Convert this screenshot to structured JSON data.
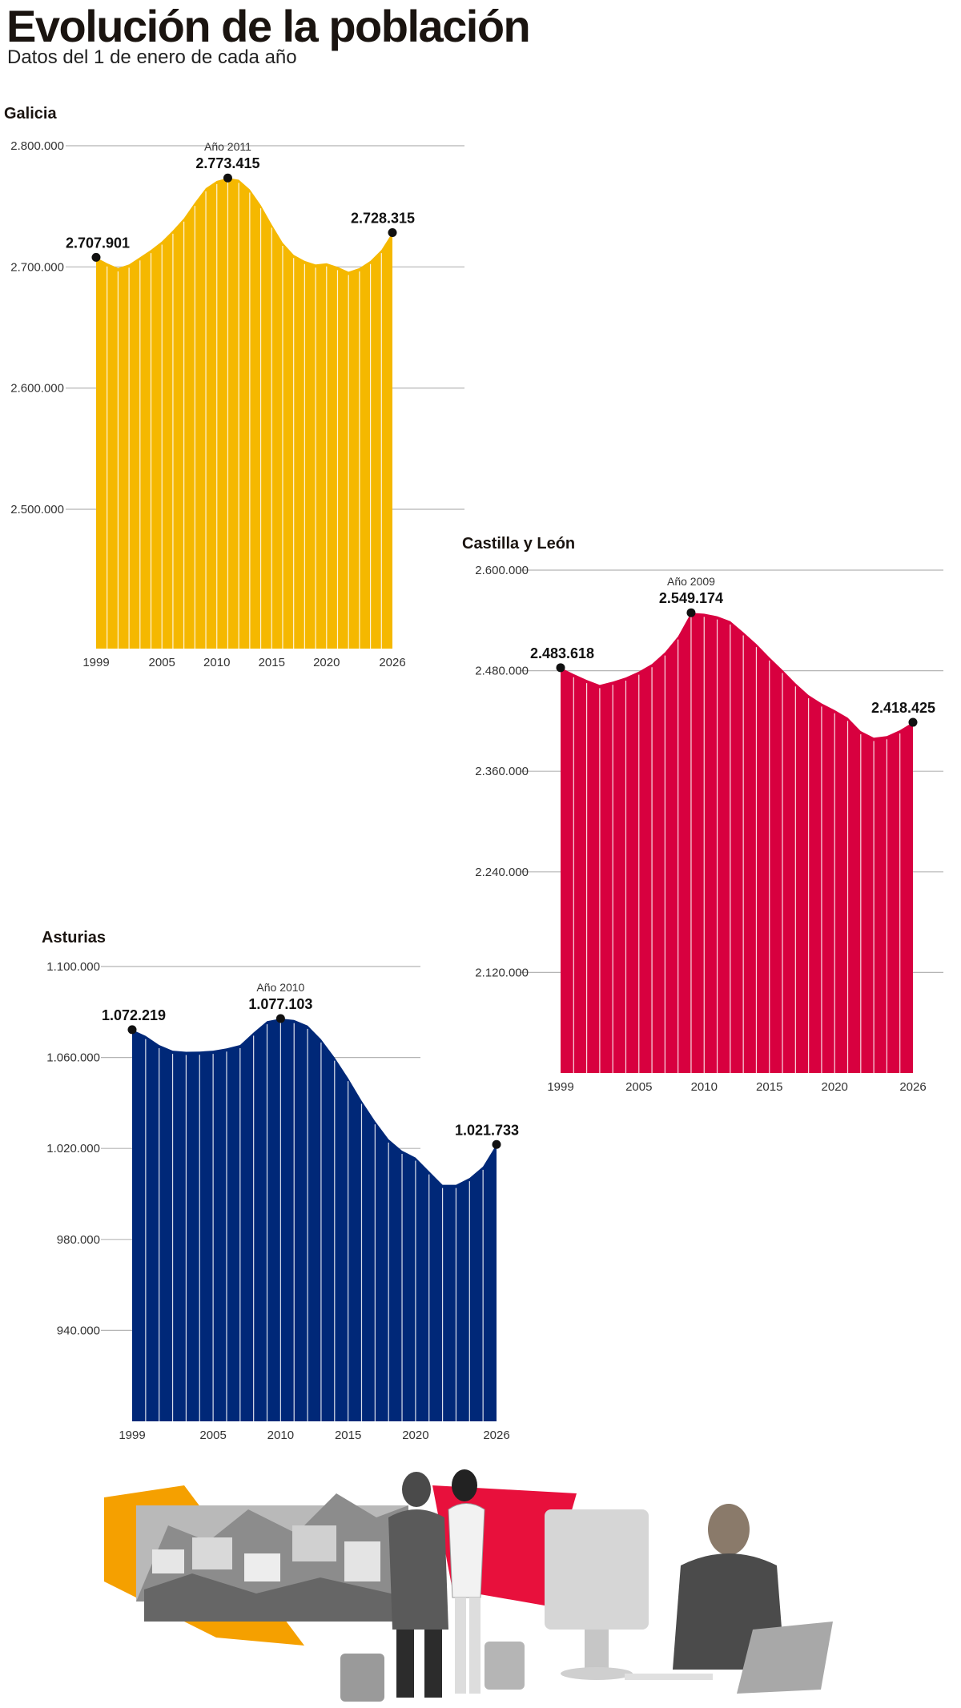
{
  "header": {
    "title": "Evolución de la población",
    "subtitle": "Datos del 1 de enero de cada año"
  },
  "chart_data": [
    {
      "type": "area",
      "title": "Galicia",
      "color": "#f5b800",
      "x": [
        1999,
        2000,
        2001,
        2002,
        2003,
        2004,
        2005,
        2006,
        2007,
        2008,
        2009,
        2010,
        2011,
        2012,
        2013,
        2014,
        2015,
        2016,
        2017,
        2018,
        2019,
        2020,
        2021,
        2022,
        2023,
        2024,
        2025,
        2026
      ],
      "values": [
        2707901,
        2703000,
        2699000,
        2702000,
        2708000,
        2714000,
        2721000,
        2730000,
        2740000,
        2753000,
        2765000,
        2771000,
        2773415,
        2772000,
        2764000,
        2751000,
        2735000,
        2720000,
        2710000,
        2705000,
        2702000,
        2703000,
        2700000,
        2696000,
        2699000,
        2705000,
        2714000,
        2728315
      ],
      "yticks": [
        2500000,
        2600000,
        2700000,
        2800000
      ],
      "ytick_labels": [
        "2.500.000",
        "2.600.000",
        "2.700.000",
        "2.800.000"
      ],
      "ylim": [
        2385000,
        2800000
      ],
      "xticks": [
        1999,
        2005,
        2010,
        2015,
        2020,
        2026
      ],
      "annotations": [
        {
          "year": 1999,
          "value": "2.707.901"
        },
        {
          "year": 2011,
          "note": "Año 2011",
          "value": "2.773.415"
        },
        {
          "year": 2026,
          "value": "2.728.315"
        }
      ]
    },
    {
      "type": "area",
      "title": "Castilla y León",
      "color": "#d8003f",
      "x": [
        1999,
        2000,
        2001,
        2002,
        2003,
        2004,
        2005,
        2006,
        2007,
        2008,
        2009,
        2010,
        2011,
        2012,
        2013,
        2014,
        2015,
        2016,
        2017,
        2018,
        2019,
        2020,
        2021,
        2022,
        2023,
        2024,
        2025,
        2026
      ],
      "values": [
        2483618,
        2476000,
        2469000,
        2463000,
        2467000,
        2472000,
        2479000,
        2488000,
        2502000,
        2521000,
        2549174,
        2548000,
        2545000,
        2539000,
        2526000,
        2512000,
        2496000,
        2481000,
        2465000,
        2451000,
        2441000,
        2433000,
        2424000,
        2408000,
        2400000,
        2402000,
        2409000,
        2418425
      ],
      "yticks": [
        2120000,
        2240000,
        2360000,
        2480000,
        2600000
      ],
      "ytick_labels": [
        "2.120.000",
        "2.240.000",
        "2.360.000",
        "2.480.000",
        "2.600.000"
      ],
      "ylim": [
        2000000,
        2600000
      ],
      "xticks": [
        1999,
        2005,
        2010,
        2015,
        2020,
        2026
      ],
      "annotations": [
        {
          "year": 1999,
          "value": "2.483.618"
        },
        {
          "year": 2009,
          "note": "Año 2009",
          "value": "2.549.174"
        },
        {
          "year": 2026,
          "value": "2.418.425"
        }
      ]
    },
    {
      "type": "area",
      "title": "Asturias",
      "color": "#002878",
      "x": [
        1999,
        2000,
        2001,
        2002,
        2003,
        2004,
        2005,
        2006,
        2007,
        2008,
        2009,
        2010,
        2011,
        2012,
        2013,
        2014,
        2015,
        2016,
        2017,
        2018,
        2019,
        2020,
        2021,
        2022,
        2023,
        2024,
        2025,
        2026
      ],
      "values": [
        1072219,
        1069500,
        1065500,
        1063000,
        1062500,
        1062600,
        1063000,
        1064000,
        1065500,
        1071000,
        1076000,
        1077103,
        1076500,
        1074000,
        1068000,
        1060000,
        1051000,
        1041000,
        1032000,
        1024000,
        1019000,
        1016000,
        1010000,
        1004000,
        1004000,
        1007000,
        1012000,
        1021733
      ],
      "yticks": [
        940000,
        980000,
        1020000,
        1060000,
        1100000
      ],
      "ytick_labels": [
        "940.000",
        "980.000",
        "1.020.000",
        "1.060.000",
        "1.100.000"
      ],
      "ylim": [
        900000,
        1100000
      ],
      "xticks": [
        1999,
        2005,
        2010,
        2015,
        2020,
        2026
      ],
      "annotations": [
        {
          "year": 1999,
          "value": "1.072.219"
        },
        {
          "year": 2010,
          "note": "Año 2010",
          "value": "1.077.103"
        },
        {
          "year": 2026,
          "value": "1.021.733"
        }
      ]
    }
  ]
}
